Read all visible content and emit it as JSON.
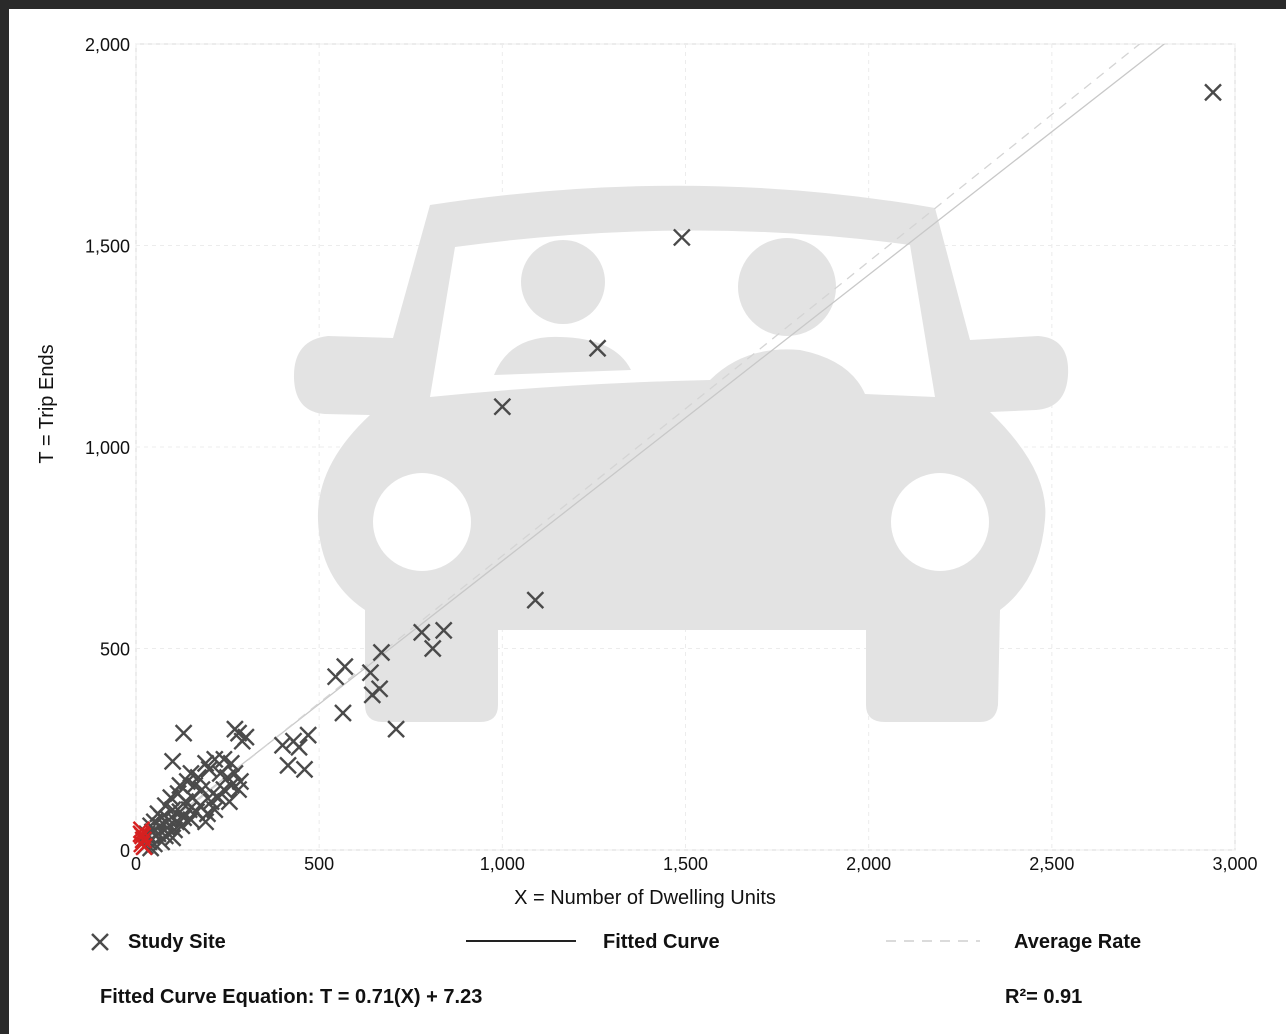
{
  "chart_data": {
    "type": "scatter",
    "xlabel": "X = Number of Dwelling Units",
    "ylabel": "T = Trip Ends",
    "xlim": [
      0,
      3000
    ],
    "ylim": [
      0,
      2000
    ],
    "x_ticks": [
      0,
      500,
      1000,
      1500,
      2000,
      2500,
      3000
    ],
    "y_ticks": [
      0,
      500,
      1000,
      1500,
      2000
    ],
    "x_tick_labels": [
      "0",
      "500",
      "1,000",
      "1,500",
      "2,000",
      "2,500",
      "3,000"
    ],
    "y_tick_labels": [
      "0",
      "500",
      "1,000",
      "1,500",
      "2,000"
    ],
    "grid": true,
    "legend_placement": "bottom",
    "series": [
      {
        "name": "Study Site",
        "marker": "x",
        "color": "#4a4a4a",
        "points": [
          [
            2940,
            1880
          ],
          [
            1490,
            1520
          ],
          [
            1260,
            1245
          ],
          [
            1000,
            1100
          ],
          [
            1090,
            620
          ],
          [
            840,
            545
          ],
          [
            780,
            540
          ],
          [
            810,
            500
          ],
          [
            670,
            490
          ],
          [
            570,
            455
          ],
          [
            545,
            430
          ],
          [
            640,
            440
          ],
          [
            665,
            400
          ],
          [
            645,
            385
          ],
          [
            710,
            300
          ],
          [
            565,
            340
          ],
          [
            470,
            285
          ],
          [
            430,
            270
          ],
          [
            445,
            255
          ],
          [
            415,
            210
          ],
          [
            460,
            200
          ],
          [
            400,
            260
          ],
          [
            130,
            290
          ],
          [
            270,
            300
          ],
          [
            280,
            290
          ],
          [
            300,
            280
          ],
          [
            290,
            270
          ],
          [
            100,
            220
          ],
          [
            190,
            215
          ],
          [
            215,
            225
          ],
          [
            240,
            225
          ],
          [
            260,
            215
          ],
          [
            150,
            190
          ],
          [
            170,
            180
          ],
          [
            200,
            200
          ],
          [
            230,
            190
          ],
          [
            250,
            180
          ],
          [
            270,
            190
          ],
          [
            285,
            170
          ],
          [
            120,
            160
          ],
          [
            140,
            170
          ],
          [
            160,
            160
          ],
          [
            180,
            150
          ],
          [
            210,
            140
          ],
          [
            240,
            150
          ],
          [
            260,
            160
          ],
          [
            280,
            150
          ],
          [
            95,
            130
          ],
          [
            115,
            140
          ],
          [
            135,
            120
          ],
          [
            155,
            130
          ],
          [
            175,
            110
          ],
          [
            205,
            120
          ],
          [
            225,
            130
          ],
          [
            255,
            120
          ],
          [
            80,
            110
          ],
          [
            100,
            100
          ],
          [
            120,
            95
          ],
          [
            145,
            100
          ],
          [
            165,
            95
          ],
          [
            195,
            90
          ],
          [
            215,
            100
          ],
          [
            60,
            90
          ],
          [
            70,
            80
          ],
          [
            90,
            75
          ],
          [
            110,
            70
          ],
          [
            130,
            80
          ],
          [
            150,
            75
          ],
          [
            190,
            70
          ],
          [
            40,
            60
          ],
          [
            50,
            70
          ],
          [
            65,
            60
          ],
          [
            85,
            55
          ],
          [
            105,
            50
          ],
          [
            125,
            60
          ],
          [
            30,
            40
          ],
          [
            45,
            45
          ],
          [
            60,
            40
          ],
          [
            80,
            35
          ],
          [
            100,
            30
          ],
          [
            20,
            25
          ],
          [
            35,
            20
          ],
          [
            50,
            15
          ],
          [
            70,
            20
          ],
          [
            25,
            10
          ],
          [
            40,
            5
          ]
        ]
      },
      {
        "name": "",
        "marker": "x",
        "color": "#d62020",
        "points": [
          [
            15,
            50
          ],
          [
            18,
            35
          ],
          [
            20,
            25
          ],
          [
            16,
            15
          ],
          [
            22,
            8
          ],
          [
            14,
            40
          ]
        ]
      }
    ],
    "fitted_curve": {
      "name": "Fitted Curve",
      "slope": 0.71,
      "intercept": 7.23,
      "style": "solid",
      "color": "#c8c8c8"
    },
    "average_rate": {
      "name": "Average Rate",
      "slope": 0.73,
      "style": "dashed",
      "color": "#d4d4d4"
    }
  },
  "legend": {
    "study_site": "Study Site",
    "fitted_curve": "Fitted Curve",
    "average_rate": "Average Rate"
  },
  "footer": {
    "equation": "Fitted Curve Equation: T = 0.71(X) + 7.23",
    "r_squared": "R²= 0.91"
  },
  "icons": {
    "background": "car-with-passengers-icon"
  }
}
